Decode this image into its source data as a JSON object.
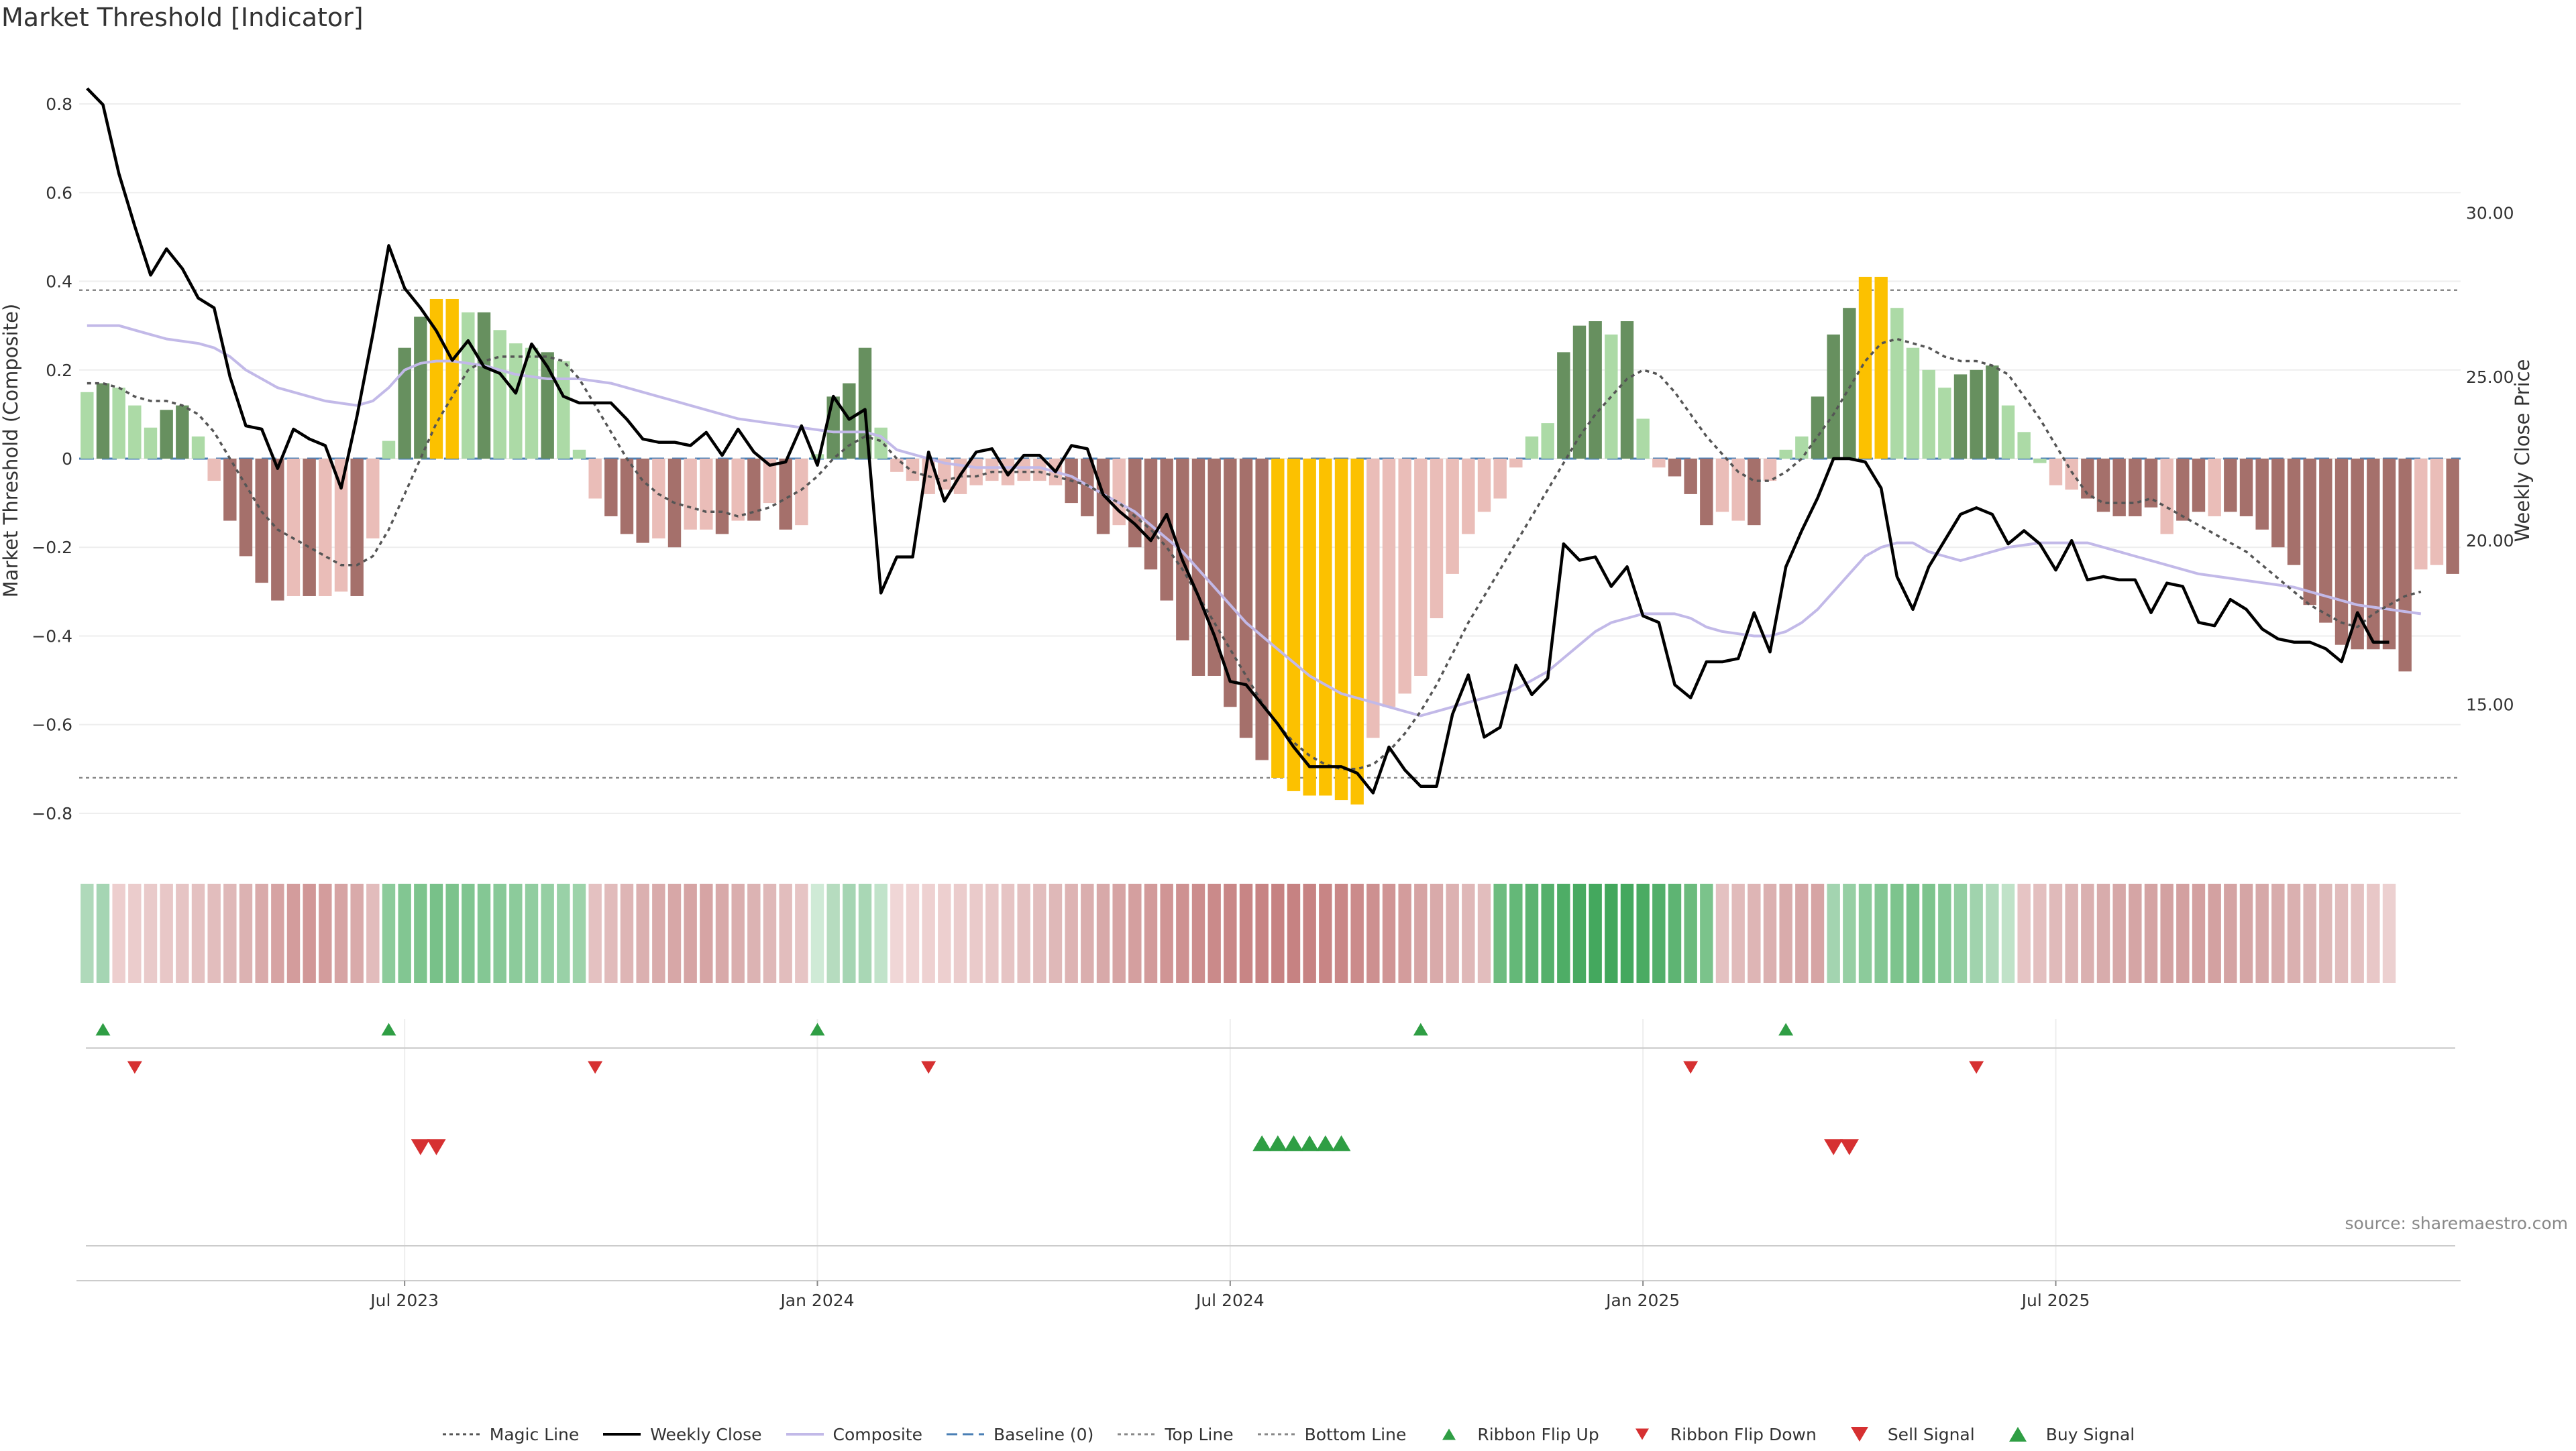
{
  "title": "Market Threshold [Indicator]",
  "source": "source: sharemaestro.com",
  "colors": {
    "pos_dark": "#67905f",
    "pos_light": "#acdaa6",
    "neg_dark": "#a5706b",
    "neg_light": "#eabdb8",
    "extreme": "#fcc100",
    "close": "#000000",
    "composite": "#c2b9e8",
    "magic": "#555555",
    "baseline": "#4a7fb5",
    "threshold": "#888888",
    "up_marker": "#2f9e44",
    "down_marker": "#d63031"
  },
  "chart_data": {
    "type": "bar",
    "xlabel": "",
    "ylabel": "Market Threshold (Composite)",
    "ylabel_right": "Weekly Close Price",
    "ylim": [
      -0.85,
      0.85
    ],
    "ylim_right": [
      11.0,
      34.0
    ],
    "yticks": [
      0.8,
      0.6,
      0.4,
      0.2,
      0,
      -0.2,
      -0.4,
      -0.6,
      -0.8
    ],
    "ytick_labels": [
      "0.8",
      "0.6",
      "0.4",
      "0.2",
      "0",
      "−0.2",
      "−0.4",
      "−0.6",
      "−0.8"
    ],
    "yticks_right": [
      30,
      25,
      20,
      15
    ],
    "ytick_labels_right": [
      "30.00",
      "25.00",
      "20.00",
      "15.00"
    ],
    "x_ticks": [
      {
        "index": 20,
        "label": "Jul 2023"
      },
      {
        "index": 46,
        "label": "Jan 2024"
      },
      {
        "index": 72,
        "label": "Jul 2024"
      },
      {
        "index": 98,
        "label": "Jan 2025"
      },
      {
        "index": 124,
        "label": "Jul 2025"
      }
    ],
    "top_line": 0.38,
    "bottom_line": -0.72,
    "baseline": 0,
    "grid": true,
    "legend_position": "bottom",
    "bar_values": [
      0.15,
      0.17,
      0.16,
      0.12,
      0.07,
      0.11,
      0.12,
      0.05,
      -0.05,
      -0.14,
      -0.22,
      -0.28,
      -0.32,
      -0.31,
      -0.31,
      -0.31,
      -0.3,
      -0.31,
      -0.18,
      0.04,
      0.25,
      0.32,
      0.36,
      0.36,
      0.33,
      0.33,
      0.29,
      0.26,
      0.25,
      0.24,
      0.22,
      0.02,
      -0.09,
      -0.13,
      -0.17,
      -0.19,
      -0.18,
      -0.2,
      -0.16,
      -0.16,
      -0.17,
      -0.14,
      -0.14,
      -0.1,
      -0.16,
      -0.15,
      0.01,
      0.14,
      0.17,
      0.25,
      0.07,
      -0.03,
      -0.05,
      -0.08,
      -0.07,
      -0.08,
      -0.06,
      -0.05,
      -0.06,
      -0.05,
      -0.05,
      -0.06,
      -0.1,
      -0.13,
      -0.17,
      -0.15,
      -0.2,
      -0.25,
      -0.32,
      -0.41,
      -0.49,
      -0.49,
      -0.56,
      -0.63,
      -0.68,
      -0.72,
      -0.75,
      -0.76,
      -0.76,
      -0.77,
      -0.78,
      -0.63,
      -0.56,
      -0.53,
      -0.49,
      -0.36,
      -0.26,
      -0.17,
      -0.12,
      -0.09,
      -0.02,
      0.05,
      0.08,
      0.24,
      0.3,
      0.31,
      0.28,
      0.31,
      0.09,
      -0.02,
      -0.04,
      -0.08,
      -0.15,
      -0.12,
      -0.14,
      -0.15,
      -0.05,
      0.02,
      0.05,
      0.14,
      0.28,
      0.34,
      0.41,
      0.41,
      0.34,
      0.25,
      0.2,
      0.16,
      0.19,
      0.2,
      0.21,
      0.12,
      0.06,
      -0.01,
      -0.06,
      -0.07,
      -0.09,
      -0.12,
      -0.13,
      -0.13,
      -0.11,
      -0.17,
      -0.14,
      -0.12,
      -0.13,
      -0.12,
      -0.13,
      -0.16,
      -0.2,
      -0.24,
      -0.33,
      -0.37,
      -0.42,
      -0.43,
      -0.43,
      -0.43,
      -0.48,
      -0.25,
      -0.24,
      -0.26
    ],
    "bar_colors": [
      "pos_light",
      "pos_dark",
      "pos_light",
      "pos_light",
      "pos_light",
      "pos_dark",
      "pos_dark",
      "pos_light",
      "neg_light",
      "neg_dark",
      "neg_dark",
      "neg_dark",
      "neg_dark",
      "neg_light",
      "neg_dark",
      "neg_light",
      "neg_light",
      "neg_dark",
      "neg_light",
      "pos_light",
      "pos_dark",
      "pos_dark",
      "extreme",
      "extreme",
      "pos_light",
      "pos_dark",
      "pos_light",
      "pos_light",
      "pos_light",
      "pos_dark",
      "pos_light",
      "pos_light",
      "neg_light",
      "neg_dark",
      "neg_dark",
      "neg_dark",
      "neg_light",
      "neg_dark",
      "neg_light",
      "neg_light",
      "neg_dark",
      "neg_light",
      "neg_dark",
      "neg_light",
      "neg_dark",
      "neg_light",
      "pos_light",
      "pos_dark",
      "pos_dark",
      "pos_dark",
      "pos_light",
      "neg_light",
      "neg_light",
      "neg_light",
      "neg_light",
      "neg_light",
      "neg_light",
      "neg_light",
      "neg_light",
      "neg_light",
      "neg_light",
      "neg_light",
      "neg_dark",
      "neg_dark",
      "neg_dark",
      "neg_light",
      "neg_dark",
      "neg_dark",
      "neg_dark",
      "neg_dark",
      "neg_dark",
      "neg_dark",
      "neg_dark",
      "neg_dark",
      "neg_dark",
      "extreme",
      "extreme",
      "extreme",
      "extreme",
      "extreme",
      "extreme",
      "neg_light",
      "neg_light",
      "neg_light",
      "neg_light",
      "neg_light",
      "neg_light",
      "neg_light",
      "neg_light",
      "neg_light",
      "neg_light",
      "pos_light",
      "pos_light",
      "pos_dark",
      "pos_dark",
      "pos_dark",
      "pos_light",
      "pos_dark",
      "pos_light",
      "neg_light",
      "neg_dark",
      "neg_dark",
      "neg_dark",
      "neg_light",
      "neg_light",
      "neg_dark",
      "neg_light",
      "pos_light",
      "pos_light",
      "pos_dark",
      "pos_dark",
      "pos_dark",
      "extreme",
      "extreme",
      "pos_light",
      "pos_light",
      "pos_light",
      "pos_light",
      "pos_dark",
      "pos_dark",
      "pos_dark",
      "pos_light",
      "pos_light",
      "pos_light",
      "neg_light",
      "neg_light",
      "neg_dark",
      "neg_dark",
      "neg_dark",
      "neg_dark",
      "neg_dark",
      "neg_light",
      "neg_dark",
      "neg_dark",
      "neg_light",
      "neg_dark",
      "neg_dark",
      "neg_dark",
      "neg_dark",
      "neg_dark",
      "neg_dark",
      "neg_dark",
      "neg_dark",
      "neg_dark",
      "neg_dark",
      "neg_dark",
      "neg_dark",
      "neg_light",
      "neg_light",
      "neg_dark"
    ],
    "series": [
      {
        "name": "Weekly Close",
        "axis": "right",
        "values": [
          33.8,
          33.3,
          31.2,
          29.6,
          28.1,
          28.9,
          28.3,
          27.4,
          27.1,
          25.0,
          23.5,
          23.4,
          22.2,
          23.4,
          23.1,
          22.9,
          21.6,
          23.8,
          26.3,
          29.0,
          27.7,
          27.1,
          26.4,
          25.5,
          26.1,
          25.3,
          25.1,
          24.5,
          26.0,
          25.3,
          24.4,
          24.2,
          24.2,
          24.2,
          23.7,
          23.1,
          23.0,
          23.0,
          22.9,
          23.3,
          22.6,
          23.4,
          22.7,
          22.3,
          22.4,
          23.5,
          22.3,
          24.4,
          23.7,
          24.0,
          18.4,
          19.5,
          19.5,
          22.7,
          21.2,
          22.0,
          22.7,
          22.8,
          22.0,
          22.6,
          22.6,
          22.1,
          22.9,
          22.8,
          21.4,
          20.9,
          20.5,
          20.0,
          20.8,
          19.4,
          18.3,
          17.1,
          15.7,
          15.6,
          15.0,
          14.4,
          13.7,
          13.1,
          13.1,
          13.1,
          12.9,
          12.3,
          13.7,
          13.0,
          12.5,
          12.5,
          14.7,
          15.9,
          14.0,
          14.3,
          16.2,
          15.3,
          15.8,
          19.9,
          19.4,
          19.5,
          18.6,
          19.2,
          17.7,
          17.5,
          15.6,
          15.2,
          16.3,
          16.3,
          16.4,
          17.8,
          16.6,
          19.2,
          20.3,
          21.3,
          22.5,
          22.5,
          22.4,
          21.6,
          18.9,
          17.9,
          19.2,
          20.0,
          20.8,
          21.0,
          20.8,
          19.9,
          20.3,
          19.9,
          19.1,
          20.0,
          18.8,
          18.9,
          18.8,
          18.8,
          17.8,
          18.7,
          18.6,
          17.5,
          17.4,
          18.2,
          17.9,
          17.3,
          17.0,
          16.9,
          16.9,
          16.7,
          16.3,
          17.8,
          16.9,
          16.9
        ]
      },
      {
        "name": "Composite",
        "axis": "left",
        "values": [
          0.3,
          0.3,
          0.3,
          0.29,
          0.28,
          0.27,
          0.265,
          0.26,
          0.25,
          0.23,
          0.2,
          0.18,
          0.16,
          0.15,
          0.14,
          0.13,
          0.125,
          0.12,
          0.13,
          0.16,
          0.2,
          0.215,
          0.22,
          0.22,
          0.215,
          0.21,
          0.2,
          0.19,
          0.185,
          0.18,
          0.18,
          0.18,
          0.175,
          0.17,
          0.16,
          0.15,
          0.14,
          0.13,
          0.12,
          0.11,
          0.1,
          0.09,
          0.085,
          0.08,
          0.075,
          0.07,
          0.065,
          0.06,
          0.06,
          0.06,
          0.05,
          0.02,
          0.01,
          0.0,
          -0.01,
          -0.015,
          -0.02,
          -0.02,
          -0.02,
          -0.02,
          -0.02,
          -0.03,
          -0.04,
          -0.06,
          -0.08,
          -0.1,
          -0.12,
          -0.15,
          -0.18,
          -0.21,
          -0.25,
          -0.29,
          -0.33,
          -0.37,
          -0.4,
          -0.43,
          -0.46,
          -0.49,
          -0.51,
          -0.53,
          -0.54,
          -0.55,
          -0.56,
          -0.57,
          -0.58,
          -0.57,
          -0.56,
          -0.55,
          -0.54,
          -0.53,
          -0.52,
          -0.5,
          -0.48,
          -0.45,
          -0.42,
          -0.39,
          -0.37,
          -0.36,
          -0.35,
          -0.35,
          -0.35,
          -0.36,
          -0.38,
          -0.39,
          -0.395,
          -0.4,
          -0.4,
          -0.39,
          -0.37,
          -0.34,
          -0.3,
          -0.26,
          -0.22,
          -0.2,
          -0.19,
          -0.19,
          -0.21,
          -0.22,
          -0.23,
          -0.22,
          -0.21,
          -0.2,
          -0.195,
          -0.19,
          -0.19,
          -0.19,
          -0.19,
          -0.2,
          -0.21,
          -0.22,
          -0.23,
          -0.24,
          -0.25,
          -0.26,
          -0.265,
          -0.27,
          -0.275,
          -0.28,
          -0.285,
          -0.29,
          -0.3,
          -0.31,
          -0.32,
          -0.33,
          -0.335,
          -0.34,
          -0.345,
          -0.35
        ]
      },
      {
        "name": "Magic Line",
        "axis": "left",
        "values": [
          0.17,
          0.17,
          0.16,
          0.14,
          0.13,
          0.13,
          0.12,
          0.1,
          0.06,
          0.0,
          -0.06,
          -0.12,
          -0.16,
          -0.18,
          -0.2,
          -0.22,
          -0.24,
          -0.24,
          -0.22,
          -0.16,
          -0.08,
          0.0,
          0.08,
          0.14,
          0.2,
          0.22,
          0.23,
          0.23,
          0.23,
          0.23,
          0.22,
          0.18,
          0.12,
          0.06,
          0.0,
          -0.05,
          -0.08,
          -0.1,
          -0.11,
          -0.12,
          -0.12,
          -0.13,
          -0.12,
          -0.11,
          -0.09,
          -0.07,
          -0.04,
          0.0,
          0.03,
          0.05,
          0.04,
          0.0,
          -0.03,
          -0.04,
          -0.05,
          -0.04,
          -0.04,
          -0.03,
          -0.03,
          -0.03,
          -0.03,
          -0.04,
          -0.05,
          -0.06,
          -0.08,
          -0.1,
          -0.13,
          -0.16,
          -0.2,
          -0.25,
          -0.31,
          -0.37,
          -0.43,
          -0.49,
          -0.55,
          -0.6,
          -0.64,
          -0.67,
          -0.69,
          -0.7,
          -0.7,
          -0.69,
          -0.66,
          -0.62,
          -0.57,
          -0.51,
          -0.44,
          -0.37,
          -0.31,
          -0.25,
          -0.19,
          -0.13,
          -0.07,
          -0.01,
          0.05,
          0.1,
          0.14,
          0.18,
          0.2,
          0.19,
          0.15,
          0.1,
          0.05,
          0.01,
          -0.03,
          -0.05,
          -0.05,
          -0.03,
          0.0,
          0.05,
          0.1,
          0.16,
          0.22,
          0.26,
          0.27,
          0.26,
          0.25,
          0.23,
          0.22,
          0.22,
          0.21,
          0.19,
          0.14,
          0.09,
          0.03,
          -0.03,
          -0.08,
          -0.1,
          -0.1,
          -0.1,
          -0.09,
          -0.11,
          -0.13,
          -0.15,
          -0.17,
          -0.19,
          -0.21,
          -0.24,
          -0.27,
          -0.3,
          -0.33,
          -0.35,
          -0.37,
          -0.38,
          -0.35,
          -0.33,
          -0.31,
          -0.3
        ]
      }
    ],
    "ribbon": {
      "colors": [
        "#afd9ba",
        "#a5d5b3",
        "#edcece",
        "#ebcccc",
        "#e9caca",
        "#e8c7c7",
        "#e6c4c4",
        "#e4c1c1",
        "#e2bdbd",
        "#dfb8b8",
        "#dcb2b2",
        "#d9aaaa",
        "#d6a3a3",
        "#d39c9c",
        "#d19797",
        "#d39c9c",
        "#d6a3a3",
        "#d9aaaa",
        "#e2bcbc",
        "#8ccb9b",
        "#82c692",
        "#7dc48d",
        "#78c189",
        "#7cc38c",
        "#80c590",
        "#84c794",
        "#88c998",
        "#8ccb9b",
        "#91cda0",
        "#95cfa3",
        "#99d1a7",
        "#9dd3aa",
        "#e4c1c1",
        "#e1bbbb",
        "#deb5b5",
        "#dbb0b0",
        "#d9abab",
        "#d7a7a7",
        "#d6a4a4",
        "#d6a4a4",
        "#d8a9a9",
        "#daaeae",
        "#dcb3b3",
        "#dfb8b8",
        "#e2bdbd",
        "#e6c4c4",
        "#cfead6",
        "#b6dcbf",
        "#a5d5b3",
        "#a9d7b5",
        "#c1e3ca",
        "#f0d6d6",
        "#efd3d3",
        "#eed1d1",
        "#edcfcf",
        "#ebcccc",
        "#eacaca",
        "#e8c7c7",
        "#e6c4c4",
        "#e4c1c1",
        "#e2bdbd",
        "#dfb8b8",
        "#ddb3b3",
        "#daaeae",
        "#d8a9a9",
        "#d6a4a4",
        "#d49f9f",
        "#d29a9a",
        "#d09595",
        "#ce9191",
        "#cc8d8d",
        "#ca8a8a",
        "#c98787",
        "#c88585",
        "#c78383",
        "#c68282",
        "#c68282",
        "#c78383",
        "#c88585",
        "#c98787",
        "#cb8b8b",
        "#cd9090",
        "#d09595",
        "#d39c9c",
        "#d6a3a3",
        "#d9aaaa",
        "#dcb1b1",
        "#dfb8b8",
        "#e2bdbd",
        "#6dbc7f",
        "#64b878",
        "#5cb371",
        "#55b06b",
        "#4ead66",
        "#48aa61",
        "#44a85e",
        "#42a75c",
        "#44a85e",
        "#4aab63",
        "#52af6a",
        "#5eb473",
        "#6bbb7d",
        "#7bc38b",
        "#e4c1c1",
        "#e1bbbb",
        "#deb5b5",
        "#dbb0b0",
        "#d9abab",
        "#d7a7a7",
        "#d6a4a4",
        "#a3d4b0",
        "#96cfa4",
        "#8ccb9b",
        "#84c794",
        "#7dc48d",
        "#78c189",
        "#7dc48d",
        "#86c896",
        "#92cea1",
        "#a0d3ad",
        "#b0dabb",
        "#c0e2c8",
        "#e6c4c4",
        "#e3bfbf",
        "#e0baba",
        "#ddb5b5",
        "#dab0b0",
        "#d8acac",
        "#d6a8a8",
        "#d5a5a5",
        "#d4a3a3",
        "#d3a1a1",
        "#d3a0a0",
        "#d3a0a0",
        "#d3a1a1",
        "#d4a3a3",
        "#d5a5a5",
        "#d6a8a8",
        "#d8acac",
        "#dab0b0",
        "#dcb4b4",
        "#deb8b8",
        "#e1bcbc",
        "#e4c1c1",
        "#e8c7c7",
        "#ecd0d0"
      ]
    },
    "flip_up": [
      1,
      19,
      46,
      84,
      107
    ],
    "flip_down": [
      3,
      32,
      53,
      101,
      119
    ],
    "sell_signal": [
      21,
      22,
      110,
      111
    ],
    "buy_signal": [
      74,
      75,
      76,
      77,
      78,
      79
    ]
  },
  "legend": [
    {
      "label": "Magic Line",
      "icon": "dotted-line-icon",
      "color": "#555555"
    },
    {
      "label": "Weekly Close",
      "icon": "solid-line-icon",
      "color": "#000000"
    },
    {
      "label": "Composite",
      "icon": "solid-line-icon",
      "color": "#c2b9e8"
    },
    {
      "label": "Baseline (0)",
      "icon": "dashed-line-icon",
      "color": "#4a7fb5"
    },
    {
      "label": "Top Line",
      "icon": "dotted-line-icon",
      "color": "#888888"
    },
    {
      "label": "Bottom Line",
      "icon": "dotted-line-icon",
      "color": "#888888"
    },
    {
      "label": "Ribbon Flip Up",
      "icon": "triangle-up-icon",
      "color": "#2f9e44"
    },
    {
      "label": "Ribbon Flip Down",
      "icon": "triangle-down-icon",
      "color": "#d63031"
    },
    {
      "label": "Sell Signal",
      "icon": "triangle-down-large-icon",
      "color": "#d63031"
    },
    {
      "label": "Buy Signal",
      "icon": "triangle-up-large-icon",
      "color": "#2f9e44"
    }
  ]
}
